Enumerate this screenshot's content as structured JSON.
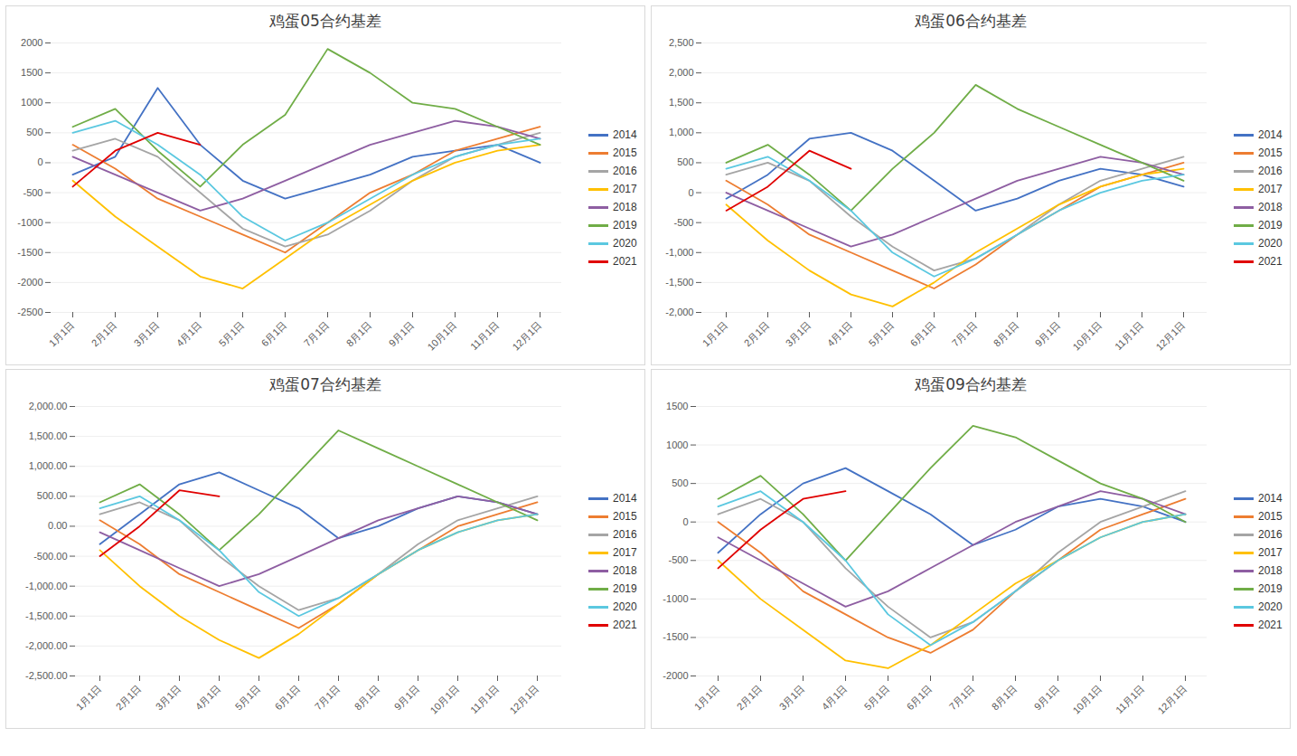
{
  "chart_data": [
    {
      "type": "line",
      "title": "鸡蛋05合约基差",
      "categories": [
        "1月1日",
        "2月1日",
        "3月1日",
        "4月1日",
        "5月1日",
        "6月1日",
        "7月1日",
        "8月1日",
        "9月1日",
        "10月1日",
        "11月1日",
        "12月1日"
      ],
      "ylim": [
        -2500,
        2000
      ],
      "yticks": [
        -2500,
        -2000,
        -1500,
        -1000,
        -500,
        0,
        500,
        1000,
        1500,
        2000
      ],
      "grid": true,
      "legend": "right",
      "series": [
        {
          "name": "2014",
          "color": "#4472c4",
          "values": [
            -200,
            100,
            1250,
            300,
            -300,
            -600,
            -400,
            -200,
            100,
            200,
            300,
            0
          ]
        },
        {
          "name": "2015",
          "color": "#ed7d31",
          "values": [
            300,
            -100,
            -600,
            -900,
            -1200,
            -1500,
            -1000,
            -500,
            -200,
            200,
            400,
            600
          ]
        },
        {
          "name": "2016",
          "color": "#a5a5a5",
          "values": [
            200,
            400,
            100,
            -500,
            -1100,
            -1400,
            -1200,
            -800,
            -300,
            100,
            300,
            500
          ]
        },
        {
          "name": "2017",
          "color": "#ffc000",
          "values": [
            -300,
            -900,
            -1400,
            -1900,
            -2100,
            -1600,
            -1100,
            -700,
            -300,
            0,
            200,
            300
          ]
        },
        {
          "name": "2018",
          "color": "#8e5ea2",
          "values": [
            100,
            -200,
            -500,
            -800,
            -600,
            -300,
            0,
            300,
            500,
            700,
            600,
            400
          ]
        },
        {
          "name": "2019",
          "color": "#70ad47",
          "values": [
            600,
            900,
            200,
            -400,
            300,
            800,
            1900,
            1500,
            1000,
            900,
            600,
            300
          ]
        },
        {
          "name": "2020",
          "color": "#5bc8e0",
          "values": [
            500,
            700,
            300,
            -200,
            -900,
            -1300,
            -1000,
            -600,
            -200,
            100,
            300,
            400
          ]
        },
        {
          "name": "2021",
          "color": "#e00000",
          "values": [
            -400,
            200,
            500,
            300,
            null,
            null,
            null,
            null,
            null,
            null,
            null,
            null
          ]
        }
      ]
    },
    {
      "type": "line",
      "title": "鸡蛋06合约基差",
      "categories": [
        "1月1日",
        "2月1日",
        "3月1日",
        "4月1日",
        "5月1日",
        "6月1日",
        "7月1日",
        "8月1日",
        "9月1日",
        "10月1日",
        "11月1日",
        "12月1日"
      ],
      "ylim": [
        -2000,
        2500
      ],
      "yticks": [
        {
          "value": -2000,
          "label": "-2,000"
        },
        {
          "value": -1500,
          "label": "-1,500"
        },
        {
          "value": -1000,
          "label": "-1,000"
        },
        -500,
        0,
        500,
        {
          "value": 1000,
          "label": "1,000"
        },
        {
          "value": 1500,
          "label": "1,500"
        },
        {
          "value": 2000,
          "label": "2,000"
        },
        {
          "value": 2500,
          "label": "2,500"
        }
      ],
      "grid": true,
      "legend": "right",
      "series": [
        {
          "name": "2014",
          "color": "#4472c4",
          "values": [
            -100,
            300,
            900,
            1000,
            700,
            200,
            -300,
            -100,
            200,
            400,
            300,
            100
          ]
        },
        {
          "name": "2015",
          "color": "#ed7d31",
          "values": [
            200,
            -200,
            -700,
            -1000,
            -1300,
            -1600,
            -1200,
            -700,
            -300,
            100,
            300,
            500
          ]
        },
        {
          "name": "2016",
          "color": "#a5a5a5",
          "values": [
            300,
            500,
            200,
            -400,
            -900,
            -1300,
            -1100,
            -700,
            -200,
            200,
            400,
            600
          ]
        },
        {
          "name": "2017",
          "color": "#ffc000",
          "values": [
            -200,
            -800,
            -1300,
            -1700,
            -1900,
            -1500,
            -1000,
            -600,
            -200,
            100,
            300,
            400
          ]
        },
        {
          "name": "2018",
          "color": "#8e5ea2",
          "values": [
            0,
            -300,
            -600,
            -900,
            -700,
            -400,
            -100,
            200,
            400,
            600,
            500,
            300
          ]
        },
        {
          "name": "2019",
          "color": "#70ad47",
          "values": [
            500,
            800,
            300,
            -300,
            400,
            1000,
            1800,
            1400,
            1100,
            800,
            500,
            200
          ]
        },
        {
          "name": "2020",
          "color": "#5bc8e0",
          "values": [
            400,
            600,
            200,
            -300,
            -1000,
            -1400,
            -1100,
            -700,
            -300,
            0,
            200,
            300
          ]
        },
        {
          "name": "2021",
          "color": "#e00000",
          "values": [
            -300,
            100,
            700,
            400,
            null,
            null,
            null,
            null,
            null,
            null,
            null,
            null
          ]
        }
      ]
    },
    {
      "type": "line",
      "title": "鸡蛋07合约基差",
      "categories": [
        "1月1日",
        "2月1日",
        "3月1日",
        "4月1日",
        "5月1日",
        "6月1日",
        "7月1日",
        "8月1日",
        "9月1日",
        "10月1日",
        "11月1日",
        "12月1日"
      ],
      "ylim": [
        -2500,
        2000
      ],
      "yticks": [
        {
          "value": -2500,
          "label": "-2,500.00"
        },
        {
          "value": -2000,
          "label": "-2,000.00"
        },
        {
          "value": -1500,
          "label": "-1,500.00"
        },
        {
          "value": -1000,
          "label": "-1,000.00"
        },
        {
          "value": -500,
          "label": "-500.00"
        },
        {
          "value": 0,
          "label": "0.00"
        },
        {
          "value": 500,
          "label": "500.00"
        },
        {
          "value": 1000,
          "label": "1,000.00"
        },
        {
          "value": 1500,
          "label": "1,500.00"
        },
        {
          "value": 2000,
          "label": "2,000.00"
        }
      ],
      "grid": true,
      "legend": "right",
      "series": [
        {
          "name": "2014",
          "color": "#4472c4",
          "values": [
            -300,
            200,
            700,
            900,
            600,
            300,
            -200,
            0,
            300,
            500,
            400,
            200
          ]
        },
        {
          "name": "2015",
          "color": "#ed7d31",
          "values": [
            100,
            -300,
            -800,
            -1100,
            -1400,
            -1700,
            -1300,
            -800,
            -400,
            0,
            200,
            400
          ]
        },
        {
          "name": "2016",
          "color": "#a5a5a5",
          "values": [
            200,
            400,
            100,
            -500,
            -1000,
            -1400,
            -1200,
            -800,
            -300,
            100,
            300,
            500
          ]
        },
        {
          "name": "2017",
          "color": "#ffc000",
          "values": [
            -400,
            -1000,
            -1500,
            -1900,
            -2200,
            -1800,
            -1300,
            -800,
            -400,
            -100,
            100,
            200
          ]
        },
        {
          "name": "2018",
          "color": "#8e5ea2",
          "values": [
            -100,
            -400,
            -700,
            -1000,
            -800,
            -500,
            -200,
            100,
            300,
            500,
            400,
            200
          ]
        },
        {
          "name": "2019",
          "color": "#70ad47",
          "values": [
            400,
            700,
            200,
            -400,
            200,
            900,
            1600,
            1300,
            1000,
            700,
            400,
            100
          ]
        },
        {
          "name": "2020",
          "color": "#5bc8e0",
          "values": [
            300,
            500,
            100,
            -400,
            -1100,
            -1500,
            -1200,
            -800,
            -400,
            -100,
            100,
            200
          ]
        },
        {
          "name": "2021",
          "color": "#e00000",
          "values": [
            -500,
            0,
            600,
            500,
            null,
            null,
            null,
            null,
            null,
            null,
            null,
            null
          ]
        }
      ]
    },
    {
      "type": "line",
      "title": "鸡蛋09合约基差",
      "categories": [
        "1月1日",
        "2月1日",
        "3月1日",
        "4月1日",
        "5月1日",
        "6月1日",
        "7月1日",
        "8月1日",
        "9月1日",
        "10月1日",
        "11月1日",
        "12月1日"
      ],
      "ylim": [
        -2000,
        1500
      ],
      "yticks": [
        -2000,
        -1500,
        -1000,
        -500,
        0,
        500,
        1000,
        1500
      ],
      "grid": true,
      "legend": "right",
      "series": [
        {
          "name": "2014",
          "color": "#4472c4",
          "values": [
            -400,
            100,
            500,
            700,
            400,
            100,
            -300,
            -100,
            200,
            300,
            200,
            0
          ]
        },
        {
          "name": "2015",
          "color": "#ed7d31",
          "values": [
            0,
            -400,
            -900,
            -1200,
            -1500,
            -1700,
            -1400,
            -900,
            -500,
            -100,
            100,
            300
          ]
        },
        {
          "name": "2016",
          "color": "#a5a5a5",
          "values": [
            100,
            300,
            0,
            -600,
            -1100,
            -1500,
            -1300,
            -900,
            -400,
            0,
            200,
            400
          ]
        },
        {
          "name": "2017",
          "color": "#ffc000",
          "values": [
            -500,
            -1000,
            -1400,
            -1800,
            -1900,
            -1600,
            -1200,
            -800,
            -500,
            -200,
            0,
            100
          ]
        },
        {
          "name": "2018",
          "color": "#8e5ea2",
          "values": [
            -200,
            -500,
            -800,
            -1100,
            -900,
            -600,
            -300,
            0,
            200,
            400,
            300,
            100
          ]
        },
        {
          "name": "2019",
          "color": "#70ad47",
          "values": [
            300,
            600,
            100,
            -500,
            100,
            700,
            1250,
            1100,
            800,
            500,
            300,
            0
          ]
        },
        {
          "name": "2020",
          "color": "#5bc8e0",
          "values": [
            200,
            400,
            0,
            -500,
            -1200,
            -1600,
            -1300,
            -900,
            -500,
            -200,
            0,
            100
          ]
        },
        {
          "name": "2021",
          "color": "#e00000",
          "values": [
            -600,
            -100,
            300,
            400,
            null,
            null,
            null,
            null,
            null,
            null,
            null,
            null
          ]
        }
      ]
    }
  ]
}
